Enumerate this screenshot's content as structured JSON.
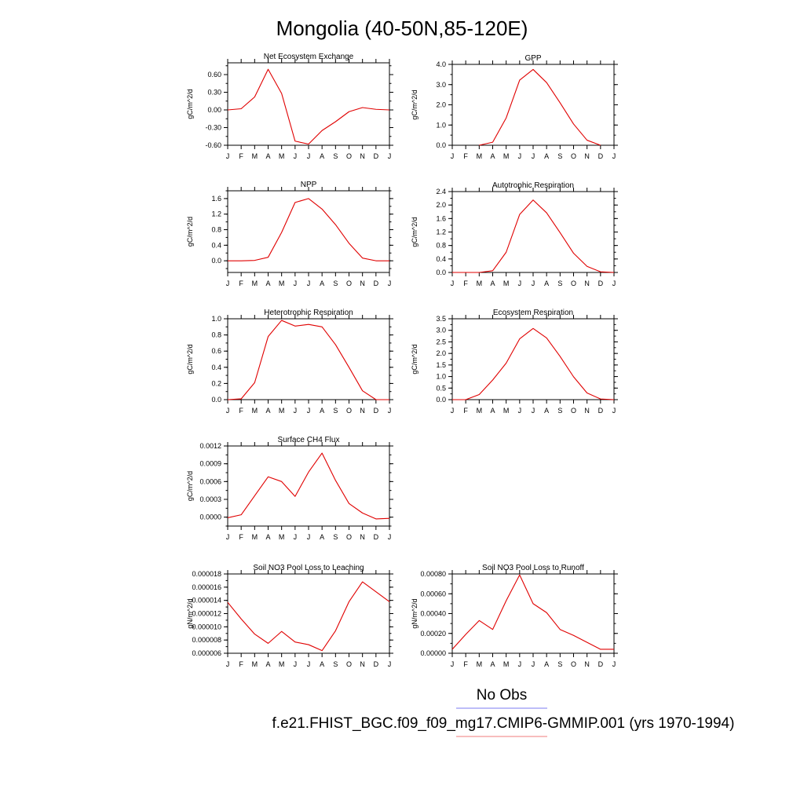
{
  "page": {
    "title": "Mongolia (40-50N,85-120E)",
    "legend": {
      "obs_label": "No Obs",
      "model_label": "f.e21.FHIST_BGC.f09_f09_mg17.CMIP6-GMMIP.001 (yrs 1970-1994)",
      "obs_color": "#7b7bf0",
      "model_color": "#f07b7b"
    }
  },
  "chart_data": [
    {
      "type": "line",
      "title": "Net Ecosystem Exchange",
      "ylabel": "gC/m^2/d",
      "x": [
        "J",
        "F",
        "M",
        "A",
        "M",
        "J",
        "J",
        "A",
        "S",
        "O",
        "N",
        "D",
        "J"
      ],
      "ylim": [
        -0.6,
        0.8
      ],
      "yticks": [
        -0.6,
        -0.3,
        0.0,
        0.3,
        0.6
      ],
      "ytick_labels": [
        "-0.60",
        "-0.30",
        "0.00",
        "0.30",
        "0.60"
      ],
      "series": [
        {
          "color": "#e00000",
          "values": [
            0.0,
            0.02,
            0.22,
            0.69,
            0.28,
            -0.53,
            -0.58,
            -0.35,
            -0.2,
            -0.03,
            0.04,
            0.01,
            0.0
          ]
        }
      ]
    },
    {
      "type": "line",
      "title": "GPP",
      "ylabel": "gC/m^2/d",
      "x": [
        "J",
        "F",
        "M",
        "A",
        "M",
        "J",
        "J",
        "A",
        "S",
        "O",
        "N",
        "D",
        "J"
      ],
      "ylim": [
        0,
        4.0
      ],
      "yticks": [
        0,
        1,
        2,
        3,
        4
      ],
      "ytick_labels": [
        "0.0",
        "1.0",
        "2.0",
        "3.0",
        "4.0"
      ],
      "series": [
        {
          "color": "#e00000",
          "values": [
            null,
            null,
            0.0,
            0.15,
            1.35,
            3.22,
            3.75,
            3.1,
            2.1,
            1.05,
            0.25,
            0.0,
            null
          ]
        }
      ]
    },
    {
      "type": "line",
      "title": "NPP",
      "ylabel": "gC/m^2/d",
      "x": [
        "J",
        "F",
        "M",
        "A",
        "M",
        "J",
        "J",
        "A",
        "S",
        "O",
        "N",
        "D",
        "J"
      ],
      "ylim": [
        -0.3,
        1.8
      ],
      "yticks": [
        0.0,
        0.4,
        0.8,
        1.2,
        1.6
      ],
      "ytick_labels": [
        "0.0",
        "0.4",
        "0.8",
        "1.2",
        "1.6"
      ],
      "series": [
        {
          "color": "#e00000",
          "values": [
            0.0,
            0.0,
            0.01,
            0.09,
            0.73,
            1.5,
            1.6,
            1.33,
            0.93,
            0.45,
            0.07,
            0.0,
            0.0
          ]
        }
      ]
    },
    {
      "type": "line",
      "title": "Autotrophic Respiration",
      "ylabel": "gC/m^2/d",
      "x": [
        "J",
        "F",
        "M",
        "A",
        "M",
        "J",
        "J",
        "A",
        "S",
        "O",
        "N",
        "D",
        "J"
      ],
      "ylim": [
        0,
        2.4
      ],
      "yticks": [
        0.0,
        0.4,
        0.8,
        1.2,
        1.6,
        2.0,
        2.4
      ],
      "ytick_labels": [
        "0.0",
        "0.4",
        "0.8",
        "1.2",
        "1.6",
        "2.0",
        "2.4"
      ],
      "series": [
        {
          "color": "#e00000",
          "values": [
            0.0,
            0.0,
            0.0,
            0.05,
            0.6,
            1.72,
            2.15,
            1.77,
            1.18,
            0.57,
            0.18,
            0.02,
            0.0
          ]
        }
      ]
    },
    {
      "type": "line",
      "title": "Heterotrophic Respiration",
      "ylabel": "gC/m^2/d",
      "x": [
        "J",
        "F",
        "M",
        "A",
        "M",
        "J",
        "J",
        "A",
        "S",
        "O",
        "N",
        "D",
        "J"
      ],
      "ylim": [
        0,
        1.0
      ],
      "yticks": [
        0.0,
        0.2,
        0.4,
        0.6,
        0.8,
        1.0
      ],
      "ytick_labels": [
        "0.0",
        "0.2",
        "0.4",
        "0.6",
        "0.8",
        "1.0"
      ],
      "series": [
        {
          "color": "#e00000",
          "values": [
            0.0,
            0.01,
            0.21,
            0.78,
            0.98,
            0.91,
            0.93,
            0.9,
            0.68,
            0.4,
            0.11,
            0.0,
            0.0
          ]
        }
      ]
    },
    {
      "type": "line",
      "title": "Ecosystem Respiration",
      "ylabel": "gC/m^2/d",
      "x": [
        "J",
        "F",
        "M",
        "A",
        "M",
        "J",
        "J",
        "A",
        "S",
        "O",
        "N",
        "D",
        "J"
      ],
      "ylim": [
        0,
        3.5
      ],
      "yticks": [
        0.0,
        0.5,
        1.0,
        1.5,
        2.0,
        2.5,
        3.0,
        3.5
      ],
      "ytick_labels": [
        "0.0",
        "0.5",
        "1.0",
        "1.5",
        "2.0",
        "2.5",
        "3.0",
        "3.5"
      ],
      "series": [
        {
          "color": "#e00000",
          "values": [
            0.0,
            0.0,
            0.22,
            0.85,
            1.58,
            2.63,
            3.08,
            2.67,
            1.87,
            0.99,
            0.29,
            0.03,
            0.0
          ]
        }
      ]
    },
    {
      "type": "line",
      "title": "Surface CH4 Flux",
      "ylabel": "gC/m^2/d",
      "x": [
        "J",
        "F",
        "M",
        "A",
        "M",
        "J",
        "J",
        "A",
        "S",
        "O",
        "N",
        "D",
        "J"
      ],
      "ylim": [
        -0.00015,
        0.0012
      ],
      "yticks": [
        0.0,
        0.0003,
        0.0006,
        0.0009,
        0.0012
      ],
      "ytick_labels": [
        "0.0000",
        "0.0003",
        "0.0006",
        "0.0009",
        "0.0012"
      ],
      "series": [
        {
          "color": "#e00000",
          "values": [
            -1e-05,
            4e-05,
            0.00036,
            0.00068,
            0.0006,
            0.00035,
            0.00076,
            0.00108,
            0.00062,
            0.00023,
            7e-05,
            -3e-05,
            -2e-05
          ]
        }
      ]
    },
    {
      "type": "line",
      "title": "Soil NO3 Pool Loss to Leaching",
      "ylabel": "gN/m^2/d",
      "x": [
        "J",
        "F",
        "M",
        "A",
        "M",
        "J",
        "J",
        "A",
        "S",
        "O",
        "N",
        "D",
        "J"
      ],
      "ylim": [
        6e-06,
        1.8e-05
      ],
      "yticks": [
        6e-06,
        8e-06,
        1e-05,
        1.2e-05,
        1.4e-05,
        1.6e-05,
        1.8e-05
      ],
      "ytick_labels": [
        "0.000006",
        "0.000008",
        "0.000010",
        "0.000012",
        "0.000014",
        "0.000016",
        "0.000018"
      ],
      "series": [
        {
          "color": "#e00000",
          "values": [
            1.37e-05,
            1.12e-05,
            8.9e-06,
            7.5e-06,
            9.3e-06,
            7.7e-06,
            7.3e-06,
            6.4e-06,
            9.4e-06,
            1.38e-05,
            1.68e-05,
            1.53e-05,
            1.38e-05
          ]
        }
      ]
    },
    {
      "type": "line",
      "title": "Soil NO3 Pool Loss to Runoff",
      "ylabel": "gN/m^2/d",
      "x": [
        "J",
        "F",
        "M",
        "A",
        "M",
        "J",
        "J",
        "A",
        "S",
        "O",
        "N",
        "D",
        "J"
      ],
      "ylim": [
        0,
        0.0008
      ],
      "yticks": [
        0.0,
        0.0002,
        0.0004,
        0.0006,
        0.0008
      ],
      "ytick_labels": [
        "0.00000",
        "0.00020",
        "0.00040",
        "0.00060",
        "0.00080"
      ],
      "series": [
        {
          "color": "#e00000",
          "values": [
            4e-05,
            0.00019,
            0.00033,
            0.00024,
            0.00053,
            0.00079,
            0.0005,
            0.00041,
            0.00024,
            0.00018,
            0.00011,
            4e-05,
            4e-05
          ]
        }
      ]
    }
  ]
}
